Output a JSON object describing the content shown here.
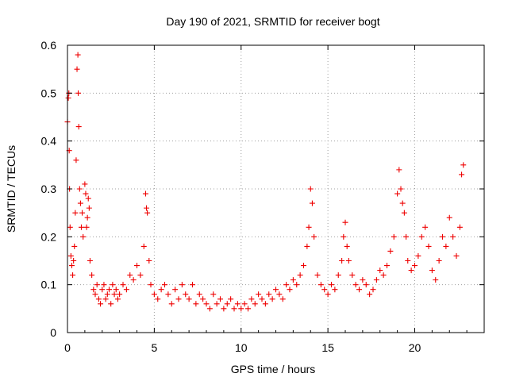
{
  "chart_data": {
    "type": "scatter",
    "title": "Day 190 of 2021, SRMTID for receiver bogt",
    "xlabel": "GPS time / hours",
    "ylabel": "SRMTID / TECUs",
    "xlim": [
      0,
      24
    ],
    "ylim": [
      0,
      0.6
    ],
    "xticks": [
      0,
      5,
      10,
      15,
      20
    ],
    "xtick_labels": [
      "0",
      "5",
      "10",
      "15",
      "20"
    ],
    "yticks": [
      0,
      0.1,
      0.2,
      0.3,
      0.4,
      0.5,
      0.6
    ],
    "ytick_labels": [
      "0",
      "0.1",
      "0.2",
      "0.3",
      "0.4",
      "0.5",
      "0.6"
    ],
    "grid": true,
    "marker": "+",
    "color": "#ee0000",
    "series": [
      {
        "name": "SRMTID",
        "x": [
          0.0,
          0.05,
          0.08,
          0.1,
          0.12,
          0.15,
          0.2,
          0.25,
          0.3,
          0.35,
          0.4,
          0.45,
          0.5,
          0.55,
          0.6,
          0.62,
          0.65,
          0.7,
          0.75,
          0.8,
          0.85,
          0.9,
          1.0,
          1.05,
          1.1,
          1.15,
          1.2,
          1.25,
          1.3,
          1.4,
          1.5,
          1.6,
          1.7,
          1.8,
          1.9,
          2.0,
          2.1,
          2.2,
          2.3,
          2.4,
          2.5,
          2.6,
          2.7,
          2.8,
          2.9,
          3.0,
          3.2,
          3.4,
          3.6,
          3.8,
          4.0,
          4.2,
          4.4,
          4.5,
          4.55,
          4.6,
          4.7,
          4.8,
          5.0,
          5.2,
          5.4,
          5.6,
          5.8,
          6.0,
          6.2,
          6.4,
          6.6,
          6.8,
          7.0,
          7.2,
          7.4,
          7.6,
          7.8,
          8.0,
          8.2,
          8.4,
          8.6,
          8.8,
          9.0,
          9.2,
          9.4,
          9.6,
          9.8,
          10.0,
          10.2,
          10.4,
          10.6,
          10.8,
          11.0,
          11.2,
          11.4,
          11.6,
          11.8,
          12.0,
          12.2,
          12.4,
          12.6,
          12.8,
          13.0,
          13.2,
          13.4,
          13.6,
          13.8,
          13.9,
          14.0,
          14.1,
          14.2,
          14.4,
          14.6,
          14.8,
          15.0,
          15.2,
          15.4,
          15.6,
          15.8,
          15.9,
          16.0,
          16.1,
          16.2,
          16.4,
          16.6,
          16.8,
          17.0,
          17.2,
          17.4,
          17.6,
          17.8,
          18.0,
          18.2,
          18.4,
          18.6,
          18.8,
          19.0,
          19.1,
          19.2,
          19.3,
          19.4,
          19.5,
          19.6,
          19.8,
          20.0,
          20.2,
          20.4,
          20.6,
          20.8,
          21.0,
          21.2,
          21.4,
          21.6,
          21.8,
          22.0,
          22.2,
          22.4,
          22.6,
          22.7,
          22.8
        ],
        "y": [
          0.44,
          0.49,
          0.5,
          0.38,
          0.3,
          0.22,
          0.16,
          0.14,
          0.12,
          0.15,
          0.18,
          0.25,
          0.36,
          0.55,
          0.58,
          0.5,
          0.43,
          0.3,
          0.27,
          0.22,
          0.25,
          0.2,
          0.31,
          0.29,
          0.22,
          0.24,
          0.28,
          0.26,
          0.15,
          0.12,
          0.09,
          0.08,
          0.1,
          0.07,
          0.06,
          0.09,
          0.1,
          0.07,
          0.08,
          0.09,
          0.06,
          0.1,
          0.08,
          0.09,
          0.07,
          0.08,
          0.1,
          0.09,
          0.12,
          0.11,
          0.14,
          0.12,
          0.18,
          0.29,
          0.26,
          0.25,
          0.15,
          0.1,
          0.08,
          0.07,
          0.09,
          0.1,
          0.08,
          0.06,
          0.09,
          0.07,
          0.1,
          0.08,
          0.07,
          0.1,
          0.06,
          0.08,
          0.07,
          0.06,
          0.05,
          0.08,
          0.06,
          0.07,
          0.05,
          0.06,
          0.07,
          0.05,
          0.06,
          0.05,
          0.06,
          0.05,
          0.07,
          0.06,
          0.08,
          0.07,
          0.06,
          0.08,
          0.07,
          0.09,
          0.08,
          0.07,
          0.1,
          0.09,
          0.11,
          0.1,
          0.12,
          0.14,
          0.18,
          0.22,
          0.3,
          0.27,
          0.2,
          0.12,
          0.1,
          0.09,
          0.08,
          0.1,
          0.09,
          0.12,
          0.15,
          0.2,
          0.23,
          0.18,
          0.15,
          0.12,
          0.1,
          0.09,
          0.11,
          0.1,
          0.08,
          0.09,
          0.11,
          0.13,
          0.12,
          0.14,
          0.17,
          0.2,
          0.29,
          0.34,
          0.3,
          0.27,
          0.25,
          0.2,
          0.15,
          0.13,
          0.14,
          0.16,
          0.2,
          0.22,
          0.18,
          0.13,
          0.11,
          0.15,
          0.2,
          0.18,
          0.24,
          0.2,
          0.16,
          0.22,
          0.33,
          0.35
        ]
      }
    ]
  }
}
